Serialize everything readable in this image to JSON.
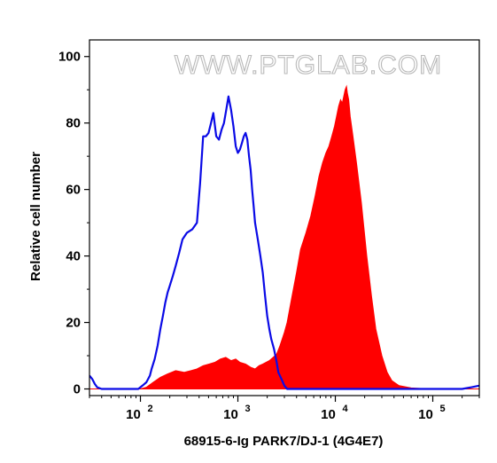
{
  "watermark": "WWW.PTGLAB.COM",
  "chart_data": {
    "type": "area",
    "xlabel": "68915-6-Ig PARK7/DJ-1 (4G4E7)",
    "ylabel": "Relative cell number",
    "xscale": "log",
    "xlim": [
      30,
      300000
    ],
    "ylim": [
      -2,
      105
    ],
    "y_ticks": [
      0,
      20,
      40,
      60,
      80,
      100
    ],
    "x_ticks": [
      {
        "value": 100,
        "base": "10",
        "exp": "2"
      },
      {
        "value": 1000,
        "base": "10",
        "exp": "3"
      },
      {
        "value": 10000,
        "base": "10",
        "exp": "4"
      },
      {
        "value": 100000,
        "base": "10",
        "exp": "5"
      }
    ],
    "series": [
      {
        "style": "filled",
        "color": "#ff0000",
        "x": [
          30,
          80,
          100,
          115,
          135,
          160,
          190,
          230,
          280,
          330,
          380,
          440,
          510,
          580,
          660,
          750,
          850,
          950,
          1050,
          1200,
          1350,
          1500,
          1650,
          1800,
          1950,
          2100,
          2300,
          2500,
          2700,
          3000,
          3200,
          3600,
          4000,
          4400,
          5000,
          5600,
          6200,
          6800,
          7400,
          8000,
          8600,
          9200,
          9800,
          10300,
          10800,
          11300,
          11800,
          12200,
          12600,
          13000,
          13300,
          13700,
          14200,
          15000,
          16500,
          18500,
          21000,
          23500,
          26000,
          30000,
          34000,
          38000,
          45000,
          60000,
          90000,
          150000,
          300000
        ],
        "y": [
          0,
          0,
          0,
          0.5,
          2,
          3.5,
          4.5,
          5.5,
          5,
          5.5,
          6,
          7,
          7.5,
          8,
          9,
          9.5,
          8.5,
          9,
          8,
          7.5,
          6.5,
          6,
          7,
          7.5,
          8,
          8.5,
          9.5,
          10.5,
          13,
          17,
          20,
          28,
          35,
          42,
          47,
          52,
          58,
          64,
          68,
          71,
          73,
          76,
          79,
          82,
          85,
          87,
          86,
          88,
          90,
          91,
          89,
          87,
          82,
          77,
          68,
          56,
          40,
          28,
          18,
          10,
          5,
          2.5,
          1,
          0.3,
          0,
          0,
          0
        ]
      },
      {
        "style": "line",
        "color": "#0a0ae6",
        "x": [
          30,
          32,
          34,
          36,
          40,
          60,
          80,
          95,
          105,
          115,
          125,
          130,
          140,
          150,
          160,
          170,
          180,
          190,
          200,
          215,
          230,
          250,
          270,
          300,
          340,
          380,
          410,
          440,
          470,
          500,
          530,
          560,
          600,
          640,
          680,
          720,
          760,
          800,
          850,
          900,
          950,
          1000,
          1050,
          1100,
          1150,
          1200,
          1250,
          1300,
          1350,
          1400,
          1450,
          1500,
          1600,
          1700,
          1800,
          1900,
          2000,
          2100,
          2200,
          2350,
          2500,
          2600,
          2800,
          3000,
          3200,
          3600,
          4000,
          5000,
          8000,
          20000,
          100000,
          200000,
          250000,
          300000
        ],
        "y": [
          4,
          3,
          1.5,
          0.5,
          0,
          0,
          0,
          0,
          1,
          2,
          4,
          6,
          9,
          13,
          18,
          22,
          26,
          29,
          31,
          34,
          37,
          41,
          45,
          47,
          48,
          50,
          62,
          76,
          76,
          77,
          80,
          83,
          76,
          75,
          78,
          80,
          84,
          88,
          84,
          79,
          73,
          71,
          72,
          74,
          76,
          77,
          75,
          70,
          66,
          60,
          55,
          50,
          45,
          40,
          35,
          28,
          22,
          18,
          15,
          12,
          8,
          5,
          3,
          1,
          0,
          0,
          0,
          0,
          0,
          0,
          0,
          0,
          0.5,
          1
        ]
      }
    ]
  }
}
